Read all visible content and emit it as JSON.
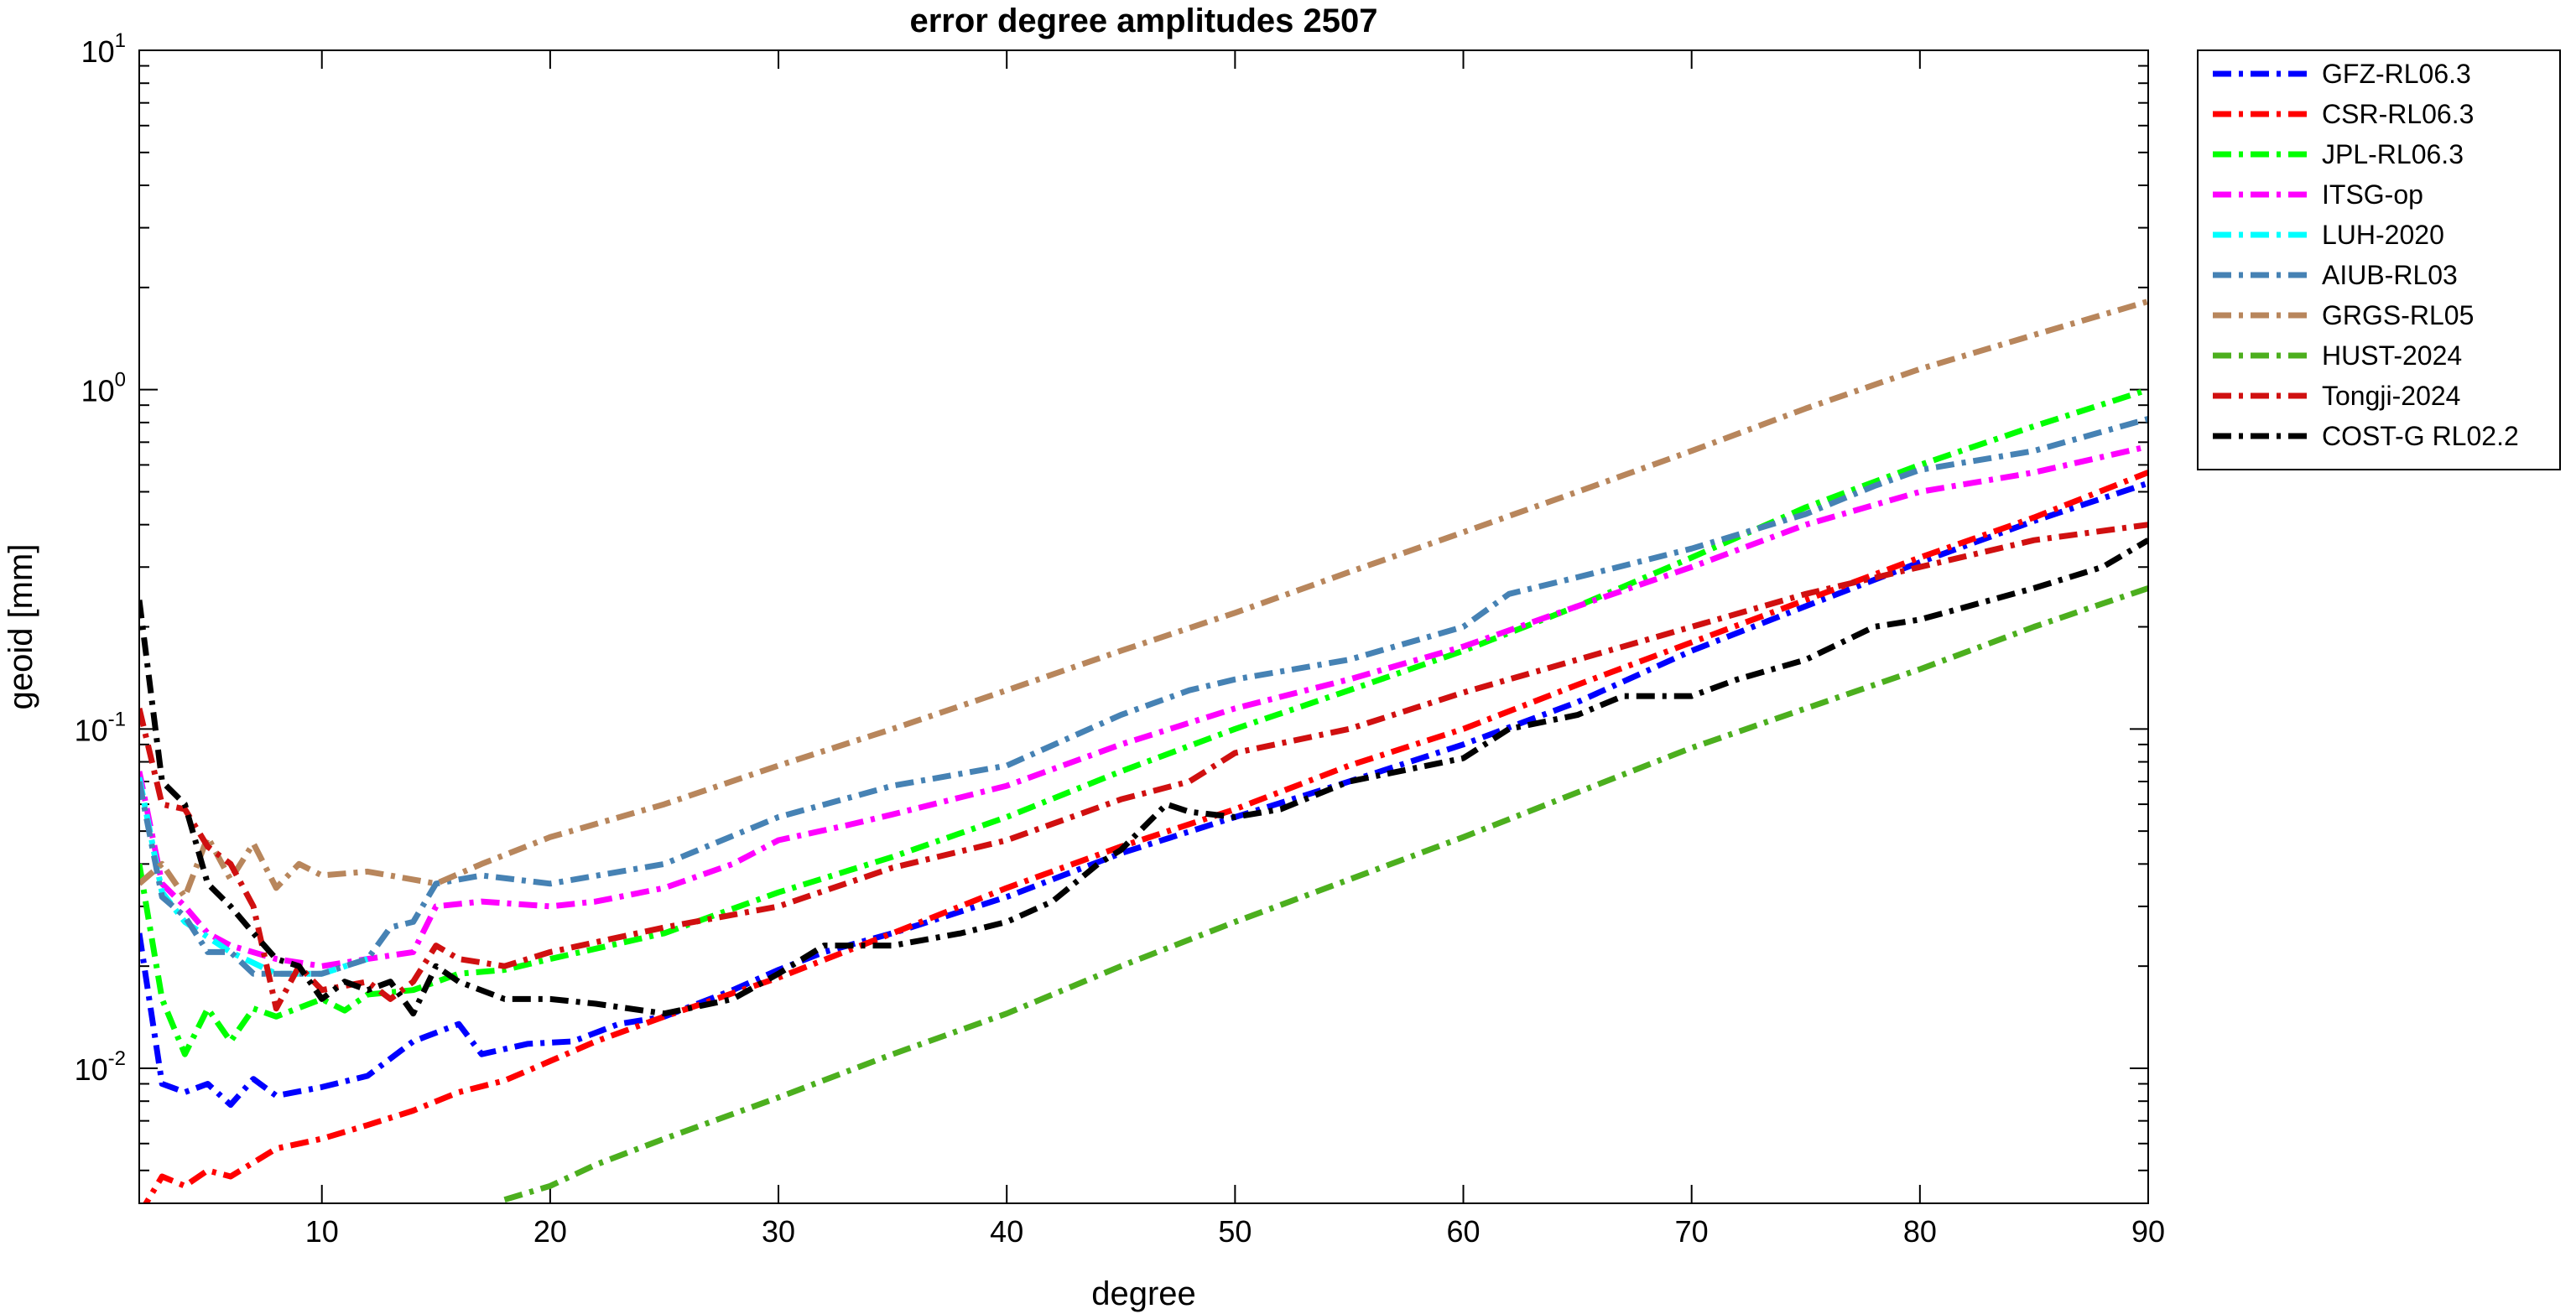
{
  "chart_data": {
    "type": "line",
    "title": "error degree amplitudes 2507",
    "xlabel": "degree",
    "ylabel": "geoid [mm]",
    "xlim": [
      2,
      90
    ],
    "ylim": [
      0.004,
      10
    ],
    "yscale": "log",
    "grid": false,
    "line_style": "dash-dot",
    "legend_position": "outside-right",
    "x_ticks": [
      10,
      20,
      30,
      40,
      50,
      60,
      70,
      80,
      90
    ],
    "y_ticks": [
      {
        "value": 0.01,
        "base": "10",
        "exp": "-2"
      },
      {
        "value": 0.1,
        "base": "10",
        "exp": "-1"
      },
      {
        "value": 1,
        "base": "10",
        "exp": "0"
      },
      {
        "value": 10,
        "base": "10",
        "exp": "1"
      }
    ],
    "series": [
      {
        "name": "GFZ-RL06.3",
        "color": "#0000ff",
        "points": [
          [
            2,
            0.025
          ],
          [
            3,
            0.009
          ],
          [
            4,
            0.0085
          ],
          [
            5,
            0.009
          ],
          [
            6,
            0.0078
          ],
          [
            7,
            0.0093
          ],
          [
            8,
            0.0083
          ],
          [
            10,
            0.0088
          ],
          [
            12,
            0.0095
          ],
          [
            14,
            0.012
          ],
          [
            16,
            0.0135
          ],
          [
            17,
            0.011
          ],
          [
            19,
            0.0118
          ],
          [
            21,
            0.012
          ],
          [
            23,
            0.0135
          ],
          [
            25,
            0.0142
          ],
          [
            28,
            0.017
          ],
          [
            30,
            0.0195
          ],
          [
            32,
            0.022
          ],
          [
            35,
            0.025
          ],
          [
            40,
            0.032
          ],
          [
            45,
            0.043
          ],
          [
            50,
            0.055
          ],
          [
            55,
            0.07
          ],
          [
            60,
            0.09
          ],
          [
            65,
            0.12
          ],
          [
            70,
            0.17
          ],
          [
            75,
            0.23
          ],
          [
            80,
            0.31
          ],
          [
            85,
            0.41
          ],
          [
            90,
            0.53
          ]
        ]
      },
      {
        "name": "CSR-RL06.3",
        "color": "#ff0000",
        "points": [
          [
            2,
            0.0037
          ],
          [
            3,
            0.0048
          ],
          [
            4,
            0.0045
          ],
          [
            5,
            0.005
          ],
          [
            6,
            0.0048
          ],
          [
            8,
            0.0058
          ],
          [
            10,
            0.0062
          ],
          [
            12,
            0.0068
          ],
          [
            14,
            0.0075
          ],
          [
            16,
            0.0085
          ],
          [
            18,
            0.0092
          ],
          [
            20,
            0.0105
          ],
          [
            22,
            0.012
          ],
          [
            25,
            0.0142
          ],
          [
            30,
            0.0185
          ],
          [
            35,
            0.025
          ],
          [
            40,
            0.034
          ],
          [
            45,
            0.045
          ],
          [
            50,
            0.058
          ],
          [
            55,
            0.078
          ],
          [
            60,
            0.1
          ],
          [
            65,
            0.135
          ],
          [
            70,
            0.18
          ],
          [
            75,
            0.24
          ],
          [
            80,
            0.32
          ],
          [
            85,
            0.42
          ],
          [
            90,
            0.57
          ]
        ]
      },
      {
        "name": "JPL-RL06.3",
        "color": "#00ff00",
        "points": [
          [
            2,
            0.04
          ],
          [
            3,
            0.016
          ],
          [
            4,
            0.011
          ],
          [
            5,
            0.015
          ],
          [
            6,
            0.012
          ],
          [
            7,
            0.015
          ],
          [
            8,
            0.0142
          ],
          [
            10,
            0.016
          ],
          [
            11,
            0.0148
          ],
          [
            12,
            0.0165
          ],
          [
            14,
            0.017
          ],
          [
            16,
            0.019
          ],
          [
            18,
            0.0195
          ],
          [
            20,
            0.021
          ],
          [
            25,
            0.025
          ],
          [
            30,
            0.033
          ],
          [
            35,
            0.042
          ],
          [
            40,
            0.055
          ],
          [
            45,
            0.075
          ],
          [
            50,
            0.1
          ],
          [
            55,
            0.13
          ],
          [
            60,
            0.17
          ],
          [
            65,
            0.23
          ],
          [
            70,
            0.32
          ],
          [
            75,
            0.45
          ],
          [
            80,
            0.6
          ],
          [
            85,
            0.78
          ],
          [
            90,
            1.0
          ]
        ]
      },
      {
        "name": "ITSG-op",
        "color": "#ff00ff",
        "points": [
          [
            2,
            0.075
          ],
          [
            3,
            0.035
          ],
          [
            4,
            0.03
          ],
          [
            5,
            0.025
          ],
          [
            6,
            0.023
          ],
          [
            8,
            0.021
          ],
          [
            10,
            0.02
          ],
          [
            12,
            0.021
          ],
          [
            14,
            0.022
          ],
          [
            15,
            0.03
          ],
          [
            17,
            0.031
          ],
          [
            20,
            0.03
          ],
          [
            22,
            0.031
          ],
          [
            25,
            0.034
          ],
          [
            28,
            0.04
          ],
          [
            30,
            0.047
          ],
          [
            33,
            0.052
          ],
          [
            35,
            0.056
          ],
          [
            40,
            0.068
          ],
          [
            45,
            0.09
          ],
          [
            50,
            0.115
          ],
          [
            55,
            0.14
          ],
          [
            60,
            0.175
          ],
          [
            65,
            0.23
          ],
          [
            70,
            0.3
          ],
          [
            75,
            0.4
          ],
          [
            80,
            0.5
          ],
          [
            85,
            0.57
          ],
          [
            90,
            0.68
          ]
        ]
      },
      {
        "name": "LUH-2020",
        "color": "#00ffff",
        "points": [
          [
            2,
            0.072
          ],
          [
            3,
            0.033
          ],
          [
            4,
            0.027
          ],
          [
            6,
            0.022
          ],
          [
            8,
            0.019
          ],
          [
            10,
            0.019
          ],
          [
            12,
            0.021
          ]
        ]
      },
      {
        "name": "AIUB-RL03",
        "color": "#4682b4",
        "points": [
          [
            2,
            0.07
          ],
          [
            3,
            0.032
          ],
          [
            4,
            0.028
          ],
          [
            5,
            0.022
          ],
          [
            6,
            0.022
          ],
          [
            7,
            0.019
          ],
          [
            9,
            0.019
          ],
          [
            10,
            0.019
          ],
          [
            12,
            0.021
          ],
          [
            13,
            0.026
          ],
          [
            14,
            0.027
          ],
          [
            15,
            0.035
          ],
          [
            17,
            0.037
          ],
          [
            20,
            0.035
          ],
          [
            25,
            0.04
          ],
          [
            30,
            0.055
          ],
          [
            35,
            0.068
          ],
          [
            40,
            0.078
          ],
          [
            45,
            0.11
          ],
          [
            48,
            0.13
          ],
          [
            50,
            0.14
          ],
          [
            55,
            0.16
          ],
          [
            60,
            0.2
          ],
          [
            62,
            0.25
          ],
          [
            65,
            0.28
          ],
          [
            70,
            0.34
          ],
          [
            75,
            0.43
          ],
          [
            78,
            0.52
          ],
          [
            80,
            0.58
          ],
          [
            85,
            0.66
          ],
          [
            90,
            0.82
          ]
        ]
      },
      {
        "name": "GRGS-RL05",
        "color": "#b8865c",
        "points": [
          [
            2,
            0.035
          ],
          [
            3,
            0.04
          ],
          [
            4,
            0.032
          ],
          [
            5,
            0.048
          ],
          [
            6,
            0.036
          ],
          [
            7,
            0.046
          ],
          [
            8,
            0.034
          ],
          [
            9,
            0.04
          ],
          [
            10,
            0.037
          ],
          [
            12,
            0.038
          ],
          [
            14,
            0.036
          ],
          [
            15,
            0.035
          ],
          [
            17,
            0.04
          ],
          [
            20,
            0.048
          ],
          [
            25,
            0.06
          ],
          [
            30,
            0.078
          ],
          [
            35,
            0.1
          ],
          [
            40,
            0.13
          ],
          [
            45,
            0.17
          ],
          [
            50,
            0.22
          ],
          [
            55,
            0.29
          ],
          [
            60,
            0.38
          ],
          [
            65,
            0.5
          ],
          [
            70,
            0.66
          ],
          [
            75,
            0.88
          ],
          [
            80,
            1.15
          ],
          [
            85,
            1.45
          ],
          [
            90,
            1.82
          ]
        ]
      },
      {
        "name": "HUST-2024",
        "color": "#4caf1e",
        "points": [
          [
            18,
            0.0041
          ],
          [
            20,
            0.0045
          ],
          [
            22,
            0.0052
          ],
          [
            25,
            0.0062
          ],
          [
            30,
            0.0082
          ],
          [
            35,
            0.011
          ],
          [
            40,
            0.0145
          ],
          [
            45,
            0.02
          ],
          [
            50,
            0.027
          ],
          [
            55,
            0.036
          ],
          [
            60,
            0.048
          ],
          [
            65,
            0.065
          ],
          [
            70,
            0.088
          ],
          [
            75,
            0.115
          ],
          [
            80,
            0.15
          ],
          [
            85,
            0.2
          ],
          [
            90,
            0.26
          ]
        ]
      },
      {
        "name": "Tongji-2024",
        "color": "#d01010",
        "points": [
          [
            2,
            0.115
          ],
          [
            3,
            0.06
          ],
          [
            4,
            0.058
          ],
          [
            5,
            0.045
          ],
          [
            6,
            0.04
          ],
          [
            7,
            0.03
          ],
          [
            8,
            0.015
          ],
          [
            9,
            0.02
          ],
          [
            10,
            0.017
          ],
          [
            12,
            0.018
          ],
          [
            13,
            0.016
          ],
          [
            14,
            0.018
          ],
          [
            15,
            0.023
          ],
          [
            16,
            0.021
          ],
          [
            18,
            0.02
          ],
          [
            20,
            0.022
          ],
          [
            25,
            0.026
          ],
          [
            30,
            0.03
          ],
          [
            35,
            0.039
          ],
          [
            40,
            0.047
          ],
          [
            45,
            0.062
          ],
          [
            48,
            0.07
          ],
          [
            50,
            0.085
          ],
          [
            55,
            0.1
          ],
          [
            60,
            0.128
          ],
          [
            65,
            0.16
          ],
          [
            70,
            0.2
          ],
          [
            75,
            0.25
          ],
          [
            80,
            0.3
          ],
          [
            85,
            0.36
          ],
          [
            90,
            0.4
          ]
        ]
      },
      {
        "name": "COST-G RL02.2",
        "color": "#000000",
        "points": [
          [
            2,
            0.24
          ],
          [
            3,
            0.07
          ],
          [
            4,
            0.06
          ],
          [
            5,
            0.035
          ],
          [
            6,
            0.03
          ],
          [
            7,
            0.025
          ],
          [
            8,
            0.021
          ],
          [
            9,
            0.02
          ],
          [
            10,
            0.016
          ],
          [
            11,
            0.018
          ],
          [
            12,
            0.017
          ],
          [
            13,
            0.018
          ],
          [
            14,
            0.0145
          ],
          [
            15,
            0.02
          ],
          [
            16,
            0.018
          ],
          [
            18,
            0.016
          ],
          [
            20,
            0.016
          ],
          [
            22,
            0.0155
          ],
          [
            25,
            0.0145
          ],
          [
            28,
            0.016
          ],
          [
            30,
            0.019
          ],
          [
            32,
            0.023
          ],
          [
            35,
            0.023
          ],
          [
            38,
            0.025
          ],
          [
            40,
            0.027
          ],
          [
            42,
            0.031
          ],
          [
            44,
            0.04
          ],
          [
            45,
            0.044
          ],
          [
            47,
            0.06
          ],
          [
            48,
            0.057
          ],
          [
            50,
            0.055
          ],
          [
            52,
            0.058
          ],
          [
            55,
            0.07
          ],
          [
            60,
            0.082
          ],
          [
            62,
            0.1
          ],
          [
            65,
            0.11
          ],
          [
            67,
            0.125
          ],
          [
            70,
            0.125
          ],
          [
            72,
            0.14
          ],
          [
            75,
            0.16
          ],
          [
            78,
            0.2
          ],
          [
            80,
            0.21
          ],
          [
            85,
            0.26
          ],
          [
            88,
            0.3
          ],
          [
            90,
            0.36
          ]
        ]
      }
    ]
  }
}
